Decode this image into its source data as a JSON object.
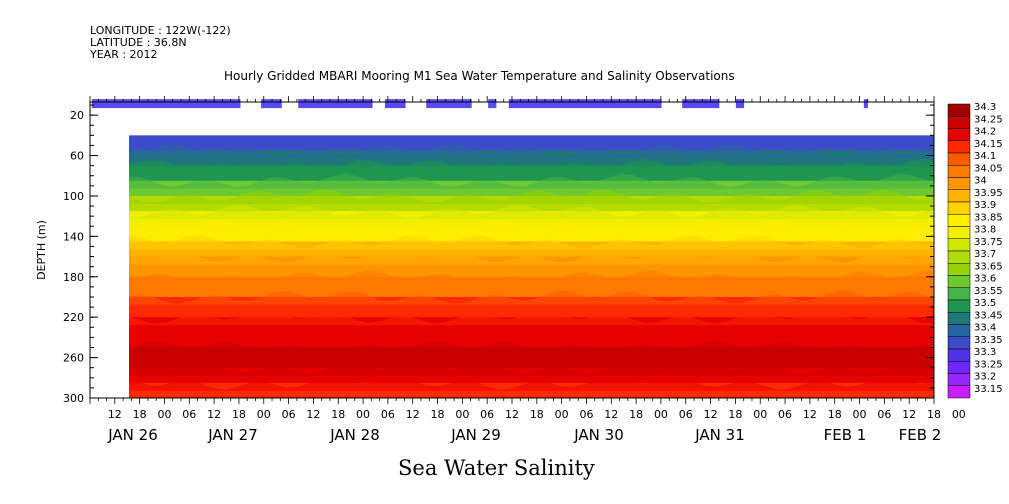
{
  "chart_data": {
    "type": "heatmap",
    "meta": [
      "LONGITUDE : 122W(-122)",
      "LATITUDE : 36.8N",
      "YEAR : 2012"
    ],
    "title": "Hourly Gridded MBARI Mooring M1 Sea Water Temperature and Salinity Observations",
    "xlabel": "Sea Water Salinity",
    "ylabel": "DEPTH (m)",
    "y_ticks": [
      20,
      60,
      100,
      140,
      180,
      220,
      260,
      300
    ],
    "y_range": [
      7,
      300
    ],
    "x_range_hours": [
      0,
      204
    ],
    "x_hour_ticks": [
      "12",
      "18",
      "00",
      "06",
      "12",
      "18",
      "00",
      "06",
      "12",
      "18",
      "00",
      "06",
      "12",
      "18",
      "00",
      "06",
      "12",
      "18",
      "00",
      "06",
      "12",
      "18",
      "00",
      "06",
      "12",
      "18",
      "00",
      "06",
      "12",
      "18",
      "00",
      "06",
      "12",
      "18",
      "00"
    ],
    "x_day_labels": [
      "JAN 26",
      "JAN 27",
      "JAN 28",
      "JAN 29",
      "JAN 30",
      "JAN 31",
      "FEB  1",
      "FEB  2"
    ],
    "colorbar_levels": [
      "34.3",
      "34.25",
      "34.2",
      "34.15",
      "34.1",
      "34.05",
      "34",
      "33.95",
      "33.9",
      "33.85",
      "33.8",
      "33.75",
      "33.7",
      "33.65",
      "33.6",
      "33.55",
      "33.5",
      "33.45",
      "33.4",
      "33.35",
      "33.3",
      "33.25",
      "33.2",
      "33.15"
    ],
    "colorbar_colors": [
      "#a00000",
      "#c80000",
      "#e60000",
      "#ff2a00",
      "#ff5a00",
      "#ff7800",
      "#ff9600",
      "#ffb400",
      "#ffd200",
      "#ffee00",
      "#f0f000",
      "#d0e800",
      "#b4dc00",
      "#96d200",
      "#6ec832",
      "#46b446",
      "#1e9650",
      "#1e7878",
      "#2864a0",
      "#3c4bc8",
      "#5032e6",
      "#6e28ff",
      "#9628ff",
      "#c81eff"
    ],
    "surface_segments_hours": [
      [
        0,
        36
      ],
      [
        41,
        46
      ],
      [
        50,
        68
      ],
      [
        71,
        76
      ],
      [
        81,
        92
      ],
      [
        96,
        98
      ],
      [
        101,
        138
      ],
      [
        143,
        152
      ],
      [
        156,
        158
      ],
      [
        187,
        188
      ]
    ],
    "surface_depth": 20,
    "profile_start_hour": 9,
    "profile_top_depth": 40,
    "salinity_profile": [
      {
        "depth": 40,
        "value": 33.33
      },
      {
        "depth": 55,
        "value": 33.4
      },
      {
        "depth": 70,
        "value": 33.5
      },
      {
        "depth": 85,
        "value": 33.58
      },
      {
        "depth": 100,
        "value": 33.66
      },
      {
        "depth": 115,
        "value": 33.75
      },
      {
        "depth": 130,
        "value": 33.85
      },
      {
        "depth": 145,
        "value": 33.92
      },
      {
        "depth": 160,
        "value": 33.98
      },
      {
        "depth": 180,
        "value": 34.05
      },
      {
        "depth": 200,
        "value": 34.12
      },
      {
        "depth": 220,
        "value": 34.18
      },
      {
        "depth": 235,
        "value": 34.22
      },
      {
        "depth": 250,
        "value": 34.27
      },
      {
        "depth": 270,
        "value": 34.26
      },
      {
        "depth": 285,
        "value": 34.2
      },
      {
        "depth": 300,
        "value": 34.18
      }
    ],
    "grid": false
  }
}
